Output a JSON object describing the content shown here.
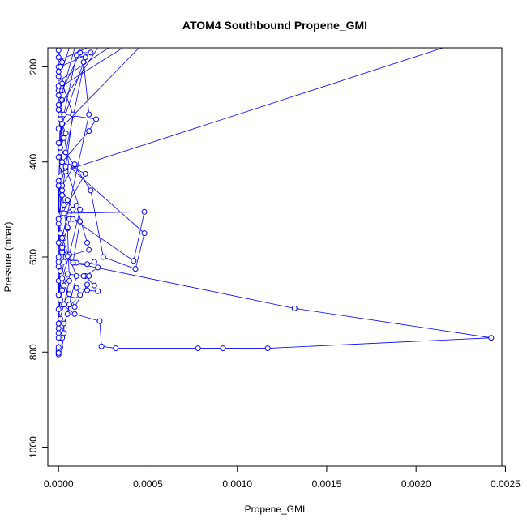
{
  "chart_data": {
    "type": "line",
    "title": "ATOM4 Southbound Propene_GMI",
    "xlabel": "Propene_GMI",
    "ylabel": "Pressure (mbar)",
    "xlim": [
      -6e-05,
      0.00248
    ],
    "ylim": [
      1040,
      160
    ],
    "y_inverted": true,
    "x_ticks": [
      0.0,
      0.0005,
      0.001,
      0.0015,
      0.002,
      0.0025
    ],
    "x_tick_labels": [
      "0.0000",
      "0.0005",
      "0.0010",
      "0.0015",
      "0.0020",
      "0.0025"
    ],
    "y_ticks": [
      200,
      400,
      600,
      800,
      1000
    ],
    "y_tick_labels": [
      "200",
      "400",
      "600",
      "800",
      "1000"
    ],
    "grid": false,
    "legend": "none",
    "series": [
      {
        "color": "#0000ff",
        "marker": "open-circle",
        "points": [
          [
            0.0,
            805
          ],
          [
            0.0,
            800
          ],
          [
            1e-05,
            790
          ],
          [
            2e-05,
            770
          ],
          [
            3e-05,
            760
          ],
          [
            3e-05,
            740
          ],
          [
            5e-05,
            720
          ],
          [
            6e-05,
            700
          ],
          [
            8e-05,
            690
          ],
          [
            0.00012,
            680
          ],
          [
            0.0001,
            665
          ],
          [
            0.00016,
            670
          ],
          [
            0.00022,
            672
          ],
          [
            0.0002,
            660
          ],
          [
            0.00015,
            640
          ],
          [
            0.00022,
            622
          ],
          [
            0.0002,
            610
          ],
          [
            0.00016,
            615
          ],
          [
            0.0001,
            612
          ],
          [
            8e-05,
            612
          ],
          [
            4e-05,
            600
          ],
          [
            2e-05,
            585
          ],
          [
            3e-05,
            560
          ],
          [
            5e-05,
            540
          ],
          [
            6e-05,
            520
          ],
          [
            8e-05,
            500
          ],
          [
            5e-05,
            480
          ],
          [
            2e-05,
            460
          ],
          [
            0.0,
            440
          ],
          [
            4e-05,
            420
          ],
          [
            2e-05,
            400
          ],
          [
            1e-05,
            380
          ],
          [
            0.0,
            360
          ],
          [
            4e-05,
            340
          ],
          [
            2e-05,
            320
          ],
          [
            1e-05,
            300
          ],
          [
            0.0,
            280
          ],
          [
            0.0,
            260
          ],
          [
            0.0,
            240
          ],
          [
            0.0,
            220
          ],
          [
            0.0,
            200
          ],
          [
            0.0,
            180
          ],
          [
            0.0,
            165
          ],
          [
            2e-05,
            190
          ],
          [
            0.0,
            210
          ],
          [
            1e-05,
            230
          ],
          [
            0.0,
            250
          ],
          [
            2e-05,
            270
          ],
          [
            0.0,
            290
          ],
          [
            1e-05,
            310
          ],
          [
            0.0,
            330
          ],
          [
            3e-05,
            350
          ],
          [
            1e-05,
            370
          ],
          [
            0.0,
            390
          ],
          [
            2e-05,
            410
          ],
          [
            1e-05,
            430
          ],
          [
            0.0,
            450
          ],
          [
            2e-05,
            470
          ],
          [
            3e-05,
            490
          ],
          [
            1e-05,
            510
          ],
          [
            0.0,
            530
          ],
          [
            1e-05,
            550
          ],
          [
            0.0,
            570
          ],
          [
            2e-05,
            590
          ],
          [
            0.0,
            610
          ],
          [
            1e-05,
            630
          ],
          [
            0.0,
            650
          ],
          [
            2e-05,
            670
          ],
          [
            1e-05,
            690
          ],
          [
            0.0,
            710
          ],
          [
            1e-05,
            730
          ],
          [
            0.0,
            750
          ],
          [
            0.0,
            770
          ],
          [
            1e-05,
            780
          ],
          [
            0.0,
            795
          ],
          [
            0.0,
            802
          ],
          [
            0.0,
            790
          ],
          [
            0.0001,
            640
          ],
          [
            2e-05,
            560
          ],
          [
            0.00017,
            300
          ],
          [
            0.00014,
            190
          ],
          [
            2e-05,
            320
          ],
          [
            6e-05,
            410
          ],
          [
            0.00048,
            550
          ],
          [
            0.00043,
            625
          ],
          [
            0.00025,
            600
          ],
          [
            0.00018,
            460
          ],
          [
            4e-05,
            380
          ],
          [
            0.00015,
            180
          ],
          [
            0.0001,
            175
          ],
          [
            3e-05,
            300
          ],
          [
            0.00021,
            310
          ],
          [
            0.00017,
            335
          ],
          [
            2e-05,
            400
          ],
          [
            0.00015,
            425
          ],
          [
            2e-05,
            508
          ],
          [
            0.00048,
            505
          ],
          [
            0.00042,
            608
          ],
          [
            8e-05,
            520
          ],
          [
            0.00012,
            525
          ],
          [
            8e-05,
            612
          ],
          [
            0.00132,
            708
          ],
          [
            0.00242,
            770
          ],
          [
            0.00117,
            792
          ],
          [
            0.00092,
            792
          ],
          [
            0.00078,
            792
          ],
          [
            0.00032,
            792
          ],
          [
            0.00024,
            788
          ],
          [
            0.00023,
            735
          ],
          [
            9e-05,
            720
          ],
          [
            2e-05,
            700
          ],
          [
            6e-05,
            678
          ],
          [
            3e-05,
            660
          ],
          [
            5e-05,
            636
          ],
          [
            0.00014,
            640
          ],
          [
            0.00017,
            640
          ],
          [
            0.00016,
            658
          ],
          [
            9e-05,
            705
          ],
          [
            2e-05,
            645
          ],
          [
            6e-05,
            595
          ],
          [
            0.00012,
            500
          ],
          [
            4e-05,
            410
          ],
          [
            9e-05,
            405
          ],
          [
            2e-05,
            450
          ],
          [
            2e-05,
            580
          ],
          [
            5e-05,
            598
          ],
          [
            0.00017,
            585
          ],
          [
            0.00016,
            570
          ],
          [
            0.0001,
            492
          ],
          [
            3e-05,
            508
          ],
          [
            5e-05,
            538
          ],
          [
            6e-05,
            650
          ],
          [
            3e-05,
            700
          ],
          [
            0.0,
            740
          ],
          [
            0.0,
            760
          ],
          [
            2e-05,
            235
          ],
          [
            8e-05,
            300
          ],
          [
            0.0,
            520
          ],
          [
            0.0,
            600
          ],
          [
            3e-05,
            610
          ],
          [
            0.0,
            680
          ],
          [
            0.0,
            450
          ],
          [
            2e-05,
            250
          ],
          [
            0.00012,
            170
          ],
          [
            0.00018,
            170
          ],
          [
            1e-05,
            200
          ],
          [
            0.0,
            620
          ]
        ]
      }
    ],
    "segments_to_offscreen": [
      [
        [
          2e-05,
          420
        ],
        [
          0.00215,
          160
        ]
      ],
      [
        [
          1e-05,
          330
        ],
        [
          0.00045,
          160
        ]
      ],
      [
        [
          2e-05,
          240
        ],
        [
          0.00036,
          160
        ]
      ],
      [
        [
          1e-05,
          280
        ],
        [
          0.00022,
          160
        ]
      ],
      [
        [
          0.0,
          230
        ],
        [
          0.00028,
          160
        ]
      ],
      [
        [
          2e-05,
          255
        ],
        [
          9e-05,
          160
        ]
      ],
      [
        [
          1e-05,
          185
        ],
        [
          0.00016,
          160
        ]
      ],
      [
        [
          2e-05,
          205
        ],
        [
          6e-05,
          160
        ]
      ]
    ]
  }
}
